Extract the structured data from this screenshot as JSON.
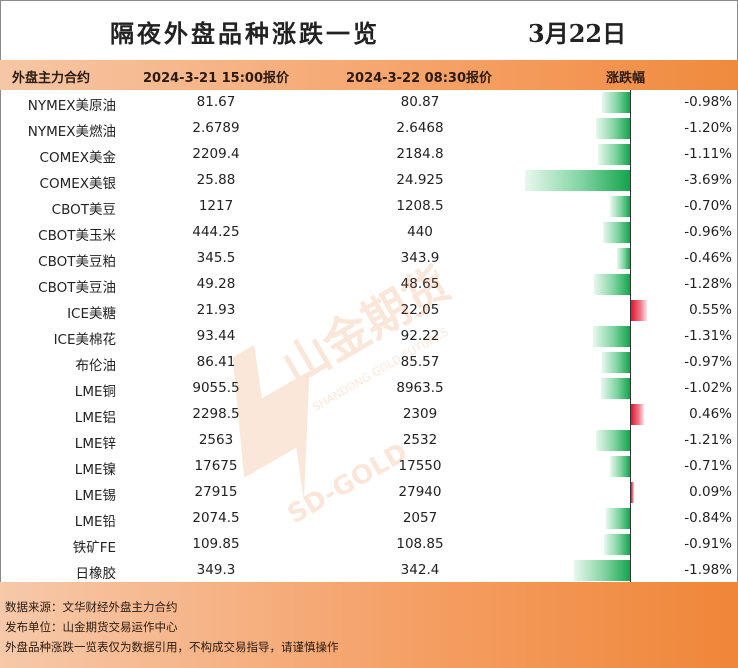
{
  "title": "隔夜外盘品种涨跌一览",
  "date": "3月22日",
  "headers": {
    "contract": "外盘主力合约",
    "price1": "2024-3-21 15:00报价",
    "price2": "2024-3-22 08:30报价",
    "change": "涨跌幅"
  },
  "rows": [
    {
      "name": "NYMEX美原油",
      "v1": "81.67",
      "v2": "80.87",
      "pct": "-0.98%",
      "change": -0.98
    },
    {
      "name": "NYMEX美燃油",
      "v1": "2.6789",
      "v2": "2.6468",
      "pct": "-1.20%",
      "change": -1.2
    },
    {
      "name": "COMEX美金",
      "v1": "2209.4",
      "v2": "2184.8",
      "pct": "-1.11%",
      "change": -1.11
    },
    {
      "name": "COMEX美银",
      "v1": "25.88",
      "v2": "24.925",
      "pct": "-3.69%",
      "change": -3.69
    },
    {
      "name": "CBOT美豆",
      "v1": "1217",
      "v2": "1208.5",
      "pct": "-0.70%",
      "change": -0.7
    },
    {
      "name": "CBOT美玉米",
      "v1": "444.25",
      "v2": "440",
      "pct": "-0.96%",
      "change": -0.96
    },
    {
      "name": "CBOT美豆粕",
      "v1": "345.5",
      "v2": "343.9",
      "pct": "-0.46%",
      "change": -0.46
    },
    {
      "name": "CBOT美豆油",
      "v1": "49.28",
      "v2": "48.65",
      "pct": "-1.28%",
      "change": -1.28
    },
    {
      "name": "ICE美糖",
      "v1": "21.93",
      "v2": "22.05",
      "pct": "0.55%",
      "change": 0.55
    },
    {
      "name": "ICE美棉花",
      "v1": "93.44",
      "v2": "92.22",
      "pct": "-1.31%",
      "change": -1.31
    },
    {
      "name": "布伦油",
      "v1": "86.41",
      "v2": "85.57",
      "pct": "-0.97%",
      "change": -0.97
    },
    {
      "name": "LME铜",
      "v1": "9055.5",
      "v2": "8963.5",
      "pct": "-1.02%",
      "change": -1.02
    },
    {
      "name": "LME铝",
      "v1": "2298.5",
      "v2": "2309",
      "pct": "0.46%",
      "change": 0.46
    },
    {
      "name": "LME锌",
      "v1": "2563",
      "v2": "2532",
      "pct": "-1.21%",
      "change": -1.21
    },
    {
      "name": "LME镍",
      "v1": "17675",
      "v2": "17550",
      "pct": "-0.71%",
      "change": -0.71
    },
    {
      "name": "LME锡",
      "v1": "27915",
      "v2": "27940",
      "pct": "0.09%",
      "change": 0.09
    },
    {
      "name": "LME铅",
      "v1": "2074.5",
      "v2": "2057",
      "pct": "-0.84%",
      "change": -0.84
    },
    {
      "name": "铁矿FE",
      "v1": "109.85",
      "v2": "108.85",
      "pct": "-0.91%",
      "change": -0.91
    },
    {
      "name": "日橡胶",
      "v1": "349.3",
      "v2": "342.4",
      "pct": "-1.98%",
      "change": -1.98
    }
  ],
  "footer": {
    "source": "数据来源：文华财经外盘主力合约",
    "publisher": "发布单位：山金期货交易运作中心",
    "disclaimer": "外盘品种涨跌一览表仅为数据引用，不构成交易指导，请谨慎操作"
  },
  "watermark": {
    "cn": "山金期货",
    "en": "SD-GOLD",
    "en_full": "SHANDONG GOLD FUTURES"
  },
  "colors": {
    "header_accent": "#ef8a3d",
    "negative": "#13a54d",
    "positive": "#e0132f"
  }
}
